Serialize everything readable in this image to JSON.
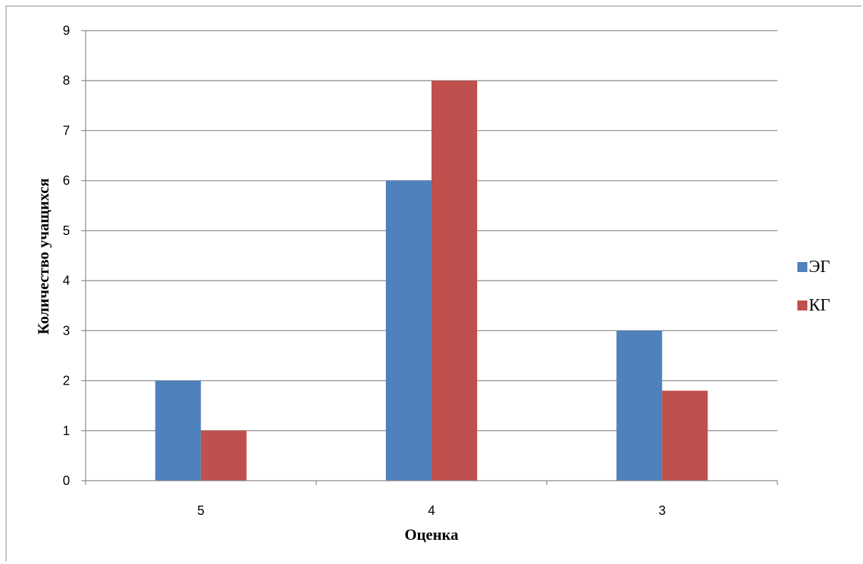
{
  "chart_data": {
    "type": "bar",
    "categories": [
      "5",
      "4",
      "3"
    ],
    "series": [
      {
        "name": "ЭГ",
        "values": [
          2,
          6,
          3
        ],
        "color": "#4F81BD"
      },
      {
        "name": "КГ",
        "values": [
          1,
          8,
          1.8
        ],
        "color": "#C0504D"
      }
    ],
    "xlabel": "Оценка",
    "ylabel": "Количество учащихся",
    "ylim": [
      0,
      9
    ],
    "yticks": [
      "0",
      "1",
      "2",
      "3",
      "4",
      "5",
      "6",
      "7",
      "8",
      "9"
    ],
    "grid": true,
    "legend_position": "right"
  }
}
